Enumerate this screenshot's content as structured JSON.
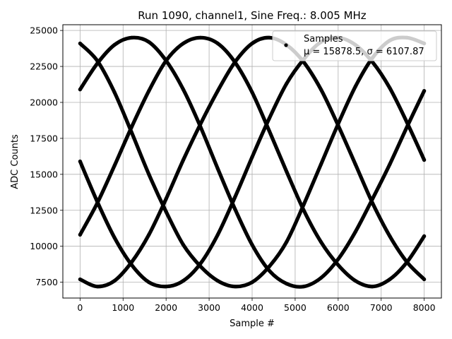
{
  "chart_data": {
    "type": "scatter",
    "title": "Run 1090, channel1, Sine Freq.: 8.005 MHz",
    "xlabel": "Sample #",
    "ylabel": "ADC Counts",
    "xlim": [
      -400,
      8400
    ],
    "ylim": [
      6400,
      25400
    ],
    "xticks": [
      0,
      1000,
      2000,
      3000,
      4000,
      5000,
      6000,
      7000,
      8000
    ],
    "yticks": [
      7500,
      10000,
      12500,
      15000,
      17500,
      20000,
      22500,
      25000
    ],
    "grid": true,
    "legend_position": "top-right",
    "legend": {
      "label": "Samples",
      "stats": "μ = 15878.5, σ = 6107.87"
    },
    "marker_color": "#000000",
    "series": [
      {
        "name": "Samples",
        "points": [
          [
            0,
            24100
          ],
          [
            400,
            22900
          ],
          [
            800,
            20700
          ],
          [
            1200,
            17900
          ],
          [
            1600,
            15000
          ],
          [
            2000,
            12400
          ],
          [
            2400,
            10100
          ],
          [
            2800,
            8600
          ],
          [
            3200,
            7600
          ],
          [
            3600,
            7200
          ],
          [
            4000,
            7500
          ],
          [
            4400,
            8600
          ],
          [
            4800,
            10300
          ],
          [
            5200,
            12900
          ],
          [
            5600,
            15700
          ],
          [
            6000,
            18500
          ],
          [
            6400,
            21100
          ],
          [
            6800,
            23100
          ],
          [
            7200,
            24300
          ],
          [
            7600,
            24500
          ],
          [
            8000,
            24100
          ]
        ]
      },
      {
        "name": "",
        "points": [
          [
            0,
            20900
          ],
          [
            400,
            22700
          ],
          [
            800,
            24000
          ],
          [
            1200,
            24500
          ],
          [
            1600,
            24200
          ],
          [
            2000,
            22900
          ],
          [
            2400,
            20900
          ],
          [
            2800,
            18300
          ],
          [
            3200,
            15400
          ],
          [
            3600,
            12600
          ],
          [
            4000,
            10100
          ],
          [
            4400,
            8300
          ],
          [
            4800,
            7400
          ],
          [
            5200,
            7200
          ],
          [
            5600,
            7800
          ],
          [
            6000,
            9100
          ],
          [
            6400,
            11000
          ],
          [
            6800,
            13300
          ],
          [
            7200,
            15700
          ],
          [
            7600,
            18300
          ],
          [
            8000,
            20800
          ]
        ]
      },
      {
        "name": "",
        "points": [
          [
            0,
            15900
          ],
          [
            400,
            13100
          ],
          [
            800,
            10600
          ],
          [
            1200,
            8700
          ],
          [
            1600,
            7500
          ],
          [
            2000,
            7200
          ],
          [
            2400,
            7600
          ],
          [
            2800,
            8800
          ],
          [
            3200,
            10800
          ],
          [
            3600,
            13400
          ],
          [
            4000,
            16200
          ],
          [
            4400,
            18900
          ],
          [
            4800,
            21300
          ],
          [
            5200,
            23000
          ],
          [
            5600,
            24200
          ],
          [
            6000,
            24500
          ],
          [
            6400,
            24000
          ],
          [
            6800,
            22800
          ],
          [
            7200,
            21000
          ],
          [
            7600,
            18600
          ],
          [
            8000,
            16000
          ]
        ]
      },
      {
        "name": "",
        "points": [
          [
            0,
            10800
          ],
          [
            400,
            13000
          ],
          [
            800,
            15600
          ],
          [
            1200,
            18300
          ],
          [
            1600,
            20800
          ],
          [
            2000,
            22900
          ],
          [
            2400,
            24100
          ],
          [
            2800,
            24500
          ],
          [
            3200,
            24100
          ],
          [
            3600,
            22800
          ],
          [
            4000,
            20700
          ],
          [
            4400,
            18000
          ],
          [
            4800,
            15200
          ],
          [
            5200,
            12500
          ],
          [
            5600,
            10300
          ],
          [
            6000,
            8700
          ],
          [
            6400,
            7600
          ],
          [
            6800,
            7200
          ],
          [
            7200,
            7700
          ],
          [
            7600,
            8900
          ],
          [
            8000,
            10700
          ]
        ]
      },
      {
        "name": "",
        "points": [
          [
            0,
            7700
          ],
          [
            400,
            7200
          ],
          [
            800,
            7600
          ],
          [
            1200,
            8900
          ],
          [
            1600,
            10800
          ],
          [
            2000,
            13300
          ],
          [
            2400,
            16000
          ],
          [
            2800,
            18500
          ],
          [
            3200,
            20800
          ],
          [
            3600,
            22800
          ],
          [
            4000,
            24100
          ],
          [
            4400,
            24500
          ],
          [
            4800,
            24000
          ],
          [
            5200,
            22800
          ],
          [
            5600,
            20900
          ],
          [
            6000,
            18400
          ],
          [
            6400,
            15700
          ],
          [
            6800,
            13000
          ],
          [
            7200,
            10700
          ],
          [
            7600,
            8900
          ],
          [
            8000,
            7700
          ]
        ]
      }
    ]
  }
}
